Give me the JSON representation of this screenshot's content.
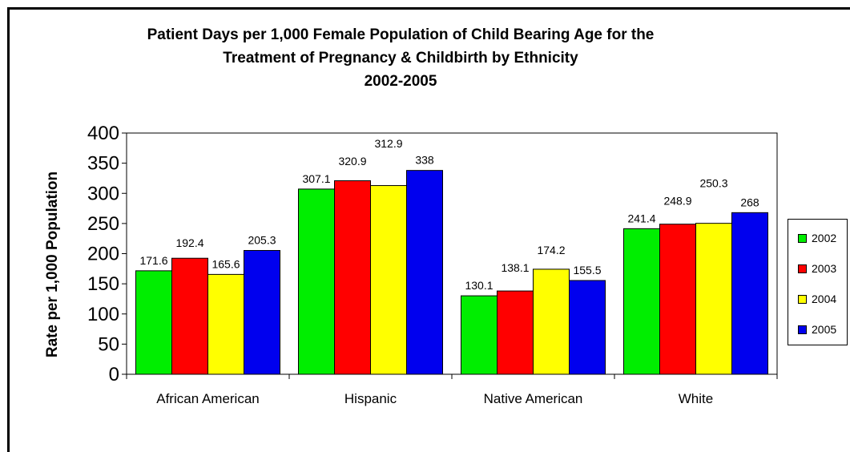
{
  "chart_data": {
    "type": "bar",
    "title": "Patient Days per 1,000 Female Population of Child Bearing Age for the Treatment of Pregnancy & Childbirth by Ethnicity",
    "title_lines": [
      "Patient Days per 1,000 Female Population of Child Bearing Age for the",
      "Treatment of Pregnancy & Childbirth by Ethnicity",
      "2002-2005"
    ],
    "ylabel": "Rate per 1,000 Population",
    "xlabel": "",
    "ylim": [
      0,
      400
    ],
    "yticks": [
      0,
      50,
      100,
      150,
      200,
      250,
      300,
      350,
      400
    ],
    "categories": [
      "African American",
      "Hispanic",
      "Native American",
      "White"
    ],
    "series": [
      {
        "name": "2002",
        "color": "#00ee00",
        "values": [
          171.6,
          307.1,
          130.1,
          241.4
        ]
      },
      {
        "name": "2003",
        "color": "#ff0000",
        "values": [
          192.4,
          320.9,
          138.1,
          248.9
        ]
      },
      {
        "name": "2004",
        "color": "#ffff00",
        "values": [
          165.6,
          312.9,
          174.2,
          250.3
        ]
      },
      {
        "name": "2005",
        "color": "#0000ee",
        "values": [
          205.3,
          338,
          155.5,
          268
        ]
      }
    ],
    "data_labels": true,
    "grid": false,
    "legend_position": "right"
  }
}
